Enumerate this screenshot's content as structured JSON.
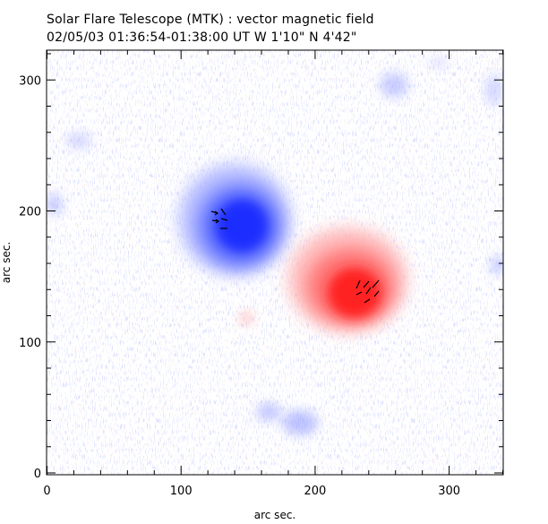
{
  "header": {
    "title": "Solar Flare Telescope (MTK) : vector magnetic field",
    "subtitle": "02/05/03  01:36:54-01:38:00 UT     W 1'10\"   N 4'42\""
  },
  "plot": {
    "xlabel": "arc sec.",
    "ylabel": "arc sec.",
    "xlim": [
      0,
      340
    ],
    "ylim": [
      0,
      320
    ],
    "x_ticks": [
      {
        "value": 0,
        "label": "0"
      },
      {
        "value": 100,
        "label": "100"
      },
      {
        "value": 200,
        "label": "200"
      },
      {
        "value": 300,
        "label": "300"
      }
    ],
    "y_ticks": [
      {
        "value": 0,
        "label": "0"
      },
      {
        "value": 100,
        "label": "100"
      },
      {
        "value": 200,
        "label": "200"
      },
      {
        "value": 300,
        "label": "300"
      }
    ],
    "colors": {
      "negative_polarity": "#2a3cff",
      "positive_polarity": "#ff2a2a",
      "arrows": "#000000"
    }
  }
}
